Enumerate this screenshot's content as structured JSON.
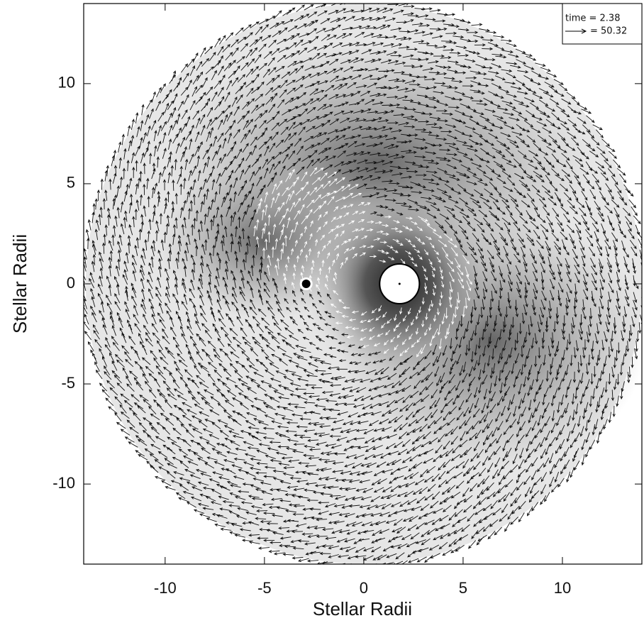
{
  "chart_data": {
    "type": "vector-field",
    "xlabel": "Stellar Radii",
    "ylabel": "Stellar Radii",
    "xlim": [
      -14.1,
      14
    ],
    "ylim": [
      -14,
      14
    ],
    "xticks": [
      -10,
      -5,
      0,
      5,
      10
    ],
    "yticks": [
      -10,
      -5,
      0,
      5,
      10
    ],
    "legend": {
      "time_text": "time =   2.38",
      "arrow_text": "= 50.32"
    }
  }
}
